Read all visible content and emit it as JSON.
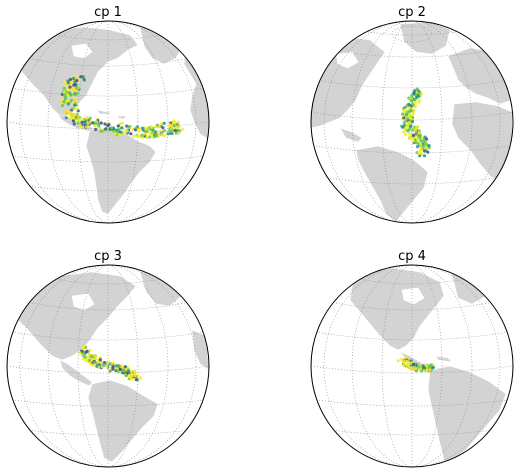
{
  "chart_data": [
    {
      "type": "scatter",
      "title": "cp 1",
      "projection": "orthographic globe",
      "grid": true,
      "colors": {
        "land": "#d3d3d3",
        "ocean": "#ffffff",
        "graticule": "#7f7f7f",
        "low": "#fde725",
        "mid": "#5ec962",
        "high": "#21918c",
        "peak": "#3b528b"
      }
    },
    {
      "type": "scatter",
      "title": "cp 2",
      "projection": "orthographic globe",
      "grid": true
    },
    {
      "type": "scatter",
      "title": "cp 3",
      "projection": "orthographic globe",
      "grid": true
    },
    {
      "type": "scatter",
      "title": "cp 4",
      "projection": "orthographic globe",
      "grid": true
    }
  ]
}
